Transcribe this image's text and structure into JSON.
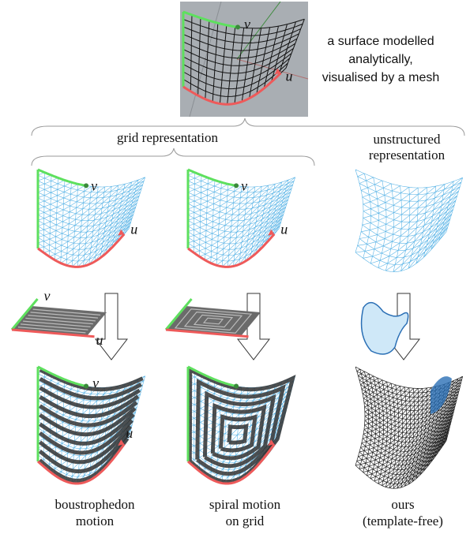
{
  "top": {
    "caption": [
      "a surface modelled",
      "analytically,",
      "visualised by a mesh"
    ],
    "u": "u",
    "v": "v"
  },
  "grid_representation": {
    "label": "grid representation"
  },
  "unstructured_representation": {
    "label": [
      "unstructured",
      "representation"
    ]
  },
  "columns": [
    {
      "mesh_labels": {
        "u": "u",
        "v": "v"
      },
      "plate_labels": {
        "u": "u",
        "v": "v"
      },
      "result_labels": {
        "u": "u",
        "v": "v"
      },
      "caption": [
        "boustrophedon",
        "motion"
      ]
    },
    {
      "mesh_labels": {
        "u": "u",
        "v": "v"
      },
      "caption": [
        "spiral motion",
        "on grid"
      ]
    },
    {
      "caption": [
        "ours",
        "(template-free)"
      ]
    }
  ]
}
